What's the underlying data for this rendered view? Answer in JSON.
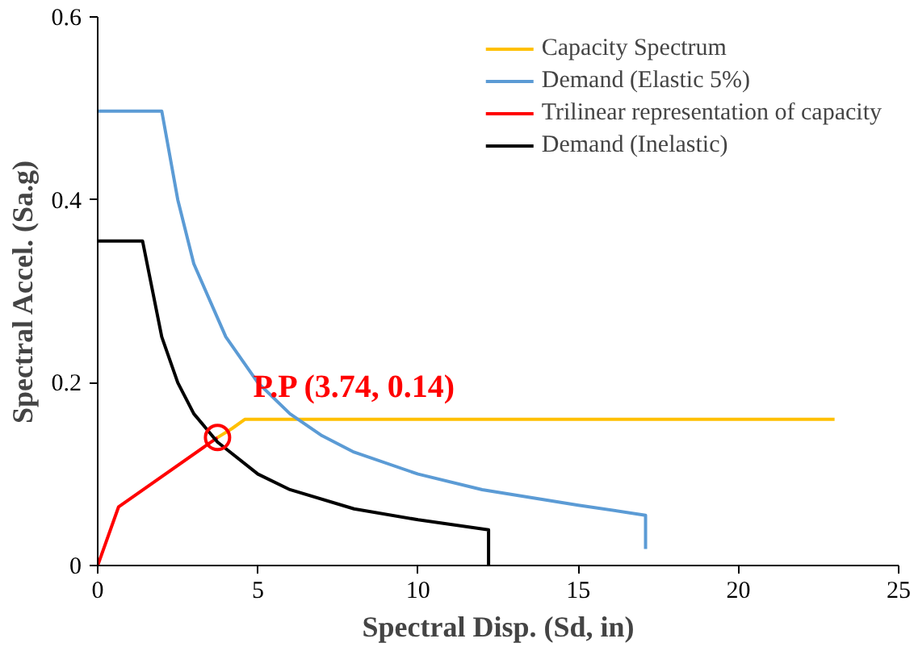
{
  "chart_data": {
    "type": "line",
    "xlabel": "Spectral Disp. (Sd, in)",
    "ylabel": "Spectral Accel. (Sa.g)",
    "xlim": [
      0,
      25
    ],
    "ylim": [
      0,
      0.6
    ],
    "xticks": [
      0,
      5,
      10,
      15,
      20,
      25
    ],
    "yticks": [
      0,
      {
        "value": 0.2,
        "label": "0.2"
      },
      {
        "value": 0.4,
        "label": "0.4"
      },
      {
        "value": 0.6,
        "label": "0.6"
      }
    ],
    "grid": false,
    "legend": "top right",
    "marker": "none",
    "line_style": "solid",
    "series": [
      {
        "name": "Capacity Spectrum",
        "color": "#ffc000",
        "x": [
          3.74,
          4.2,
          4.6,
          23
        ],
        "values": [
          0.14,
          0.15,
          0.16,
          0.16
        ]
      },
      {
        "name": "Demand (Elastic 5%)",
        "color": "#5b9bd5",
        "x": [
          0,
          2,
          2.5,
          3,
          4,
          5,
          6,
          7,
          8,
          10,
          12,
          15,
          17.1,
          17.1
        ],
        "values": [
          0.497,
          0.497,
          0.4,
          0.33,
          0.25,
          0.2,
          0.166,
          0.142,
          0.124,
          0.1,
          0.083,
          0.066,
          0.055,
          0.018
        ]
      },
      {
        "name": "Trilinear representation of capacity",
        "color": "#ff0000",
        "x": [
          0,
          0.65,
          3.74
        ],
        "values": [
          0,
          0.064,
          0.14
        ]
      },
      {
        "name": "Demand (Inelastic)",
        "color": "#000000",
        "x": [
          0,
          1.4,
          2,
          2.5,
          3,
          3.74,
          5,
          6,
          8,
          10,
          12.2,
          12.2
        ],
        "values": [
          0.355,
          0.355,
          0.25,
          0.2,
          0.166,
          0.135,
          0.1,
          0.083,
          0.062,
          0.05,
          0.039,
          0
        ]
      }
    ],
    "annotations": [
      {
        "text": "P.P (3.74, 0.14)",
        "x": 3.74,
        "y": 0.14
      }
    ]
  }
}
